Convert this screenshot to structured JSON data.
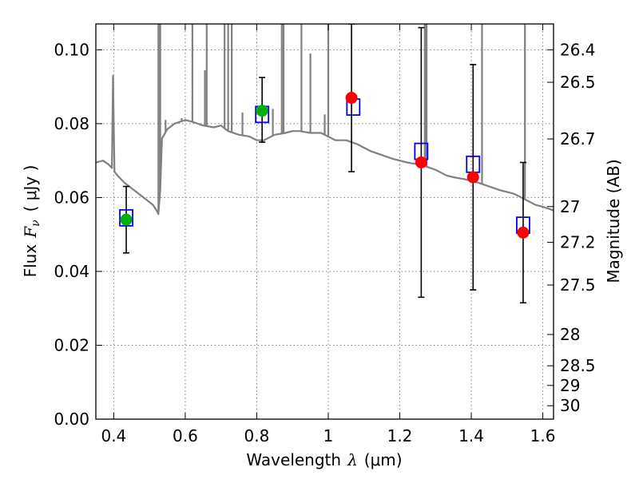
{
  "chart_data": {
    "type": "scatter",
    "xlabel_prefix": "Wavelength",
    "xlabel_math": "λ",
    "xlabel_unit": "(μm)",
    "ylabel_prefix": "Flux",
    "ylabel_math": "F",
    "ylabel_sub": "ν",
    "ylabel_unit": "( μJy )",
    "y2label": "Magnitude (AB)",
    "xlim": [
      0.35,
      1.63
    ],
    "ylim": [
      0.0,
      0.107
    ],
    "grid": true,
    "x_ticks": [
      0.4,
      0.6,
      0.8,
      1.0,
      1.2,
      1.4,
      1.6
    ],
    "x_tick_labels": [
      "0.4",
      "0.6",
      "0.8",
      "1",
      "1.2",
      "1.4",
      "1.6"
    ],
    "y_ticks": [
      0.0,
      0.02,
      0.04,
      0.06,
      0.08,
      0.1
    ],
    "y_tick_labels": [
      "0.00",
      "0.02",
      "0.04",
      "0.06",
      "0.08",
      "0.10"
    ],
    "mag_ticks": [
      26.4,
      26.5,
      26.7,
      27,
      27.2,
      27.5,
      28,
      28.5,
      29,
      30
    ],
    "mag_tick_labels": [
      "26.4",
      "26.5",
      "26.7",
      "27",
      "27.2",
      "27.5",
      "28",
      "28.5",
      "29",
      "30"
    ],
    "colors": {
      "model": "#808080",
      "model_photometry": "#0000ff",
      "detection": "#00b000",
      "observed": "#ff0000",
      "errorbar": "#000000"
    },
    "series": [
      {
        "kind": "line",
        "x": [
          0.35,
          0.37,
          0.385,
          0.395,
          0.398,
          0.402,
          0.41,
          0.43,
          0.45,
          0.47,
          0.49,
          0.51,
          0.52,
          0.525,
          0.53,
          0.535,
          0.55,
          0.57,
          0.6,
          0.62,
          0.65,
          0.68,
          0.7,
          0.72,
          0.75,
          0.78,
          0.8,
          0.82,
          0.85,
          0.88,
          0.9,
          0.92,
          0.95,
          0.98,
          1.0,
          1.02,
          1.05,
          1.08,
          1.1,
          1.12,
          1.15,
          1.18,
          1.2,
          1.22,
          1.25,
          1.27,
          1.3,
          1.33,
          1.35,
          1.38,
          1.4,
          1.42,
          1.45,
          1.48,
          1.5,
          1.52,
          1.55,
          1.58,
          1.6,
          1.63
        ],
        "y": [
          0.0695,
          0.07,
          0.069,
          0.068,
          0.093,
          0.067,
          0.066,
          0.064,
          0.0625,
          0.061,
          0.0595,
          0.058,
          0.0565,
          0.0555,
          0.062,
          0.076,
          0.0785,
          0.08,
          0.081,
          0.0805,
          0.0795,
          0.079,
          0.0795,
          0.078,
          0.077,
          0.0765,
          0.0755,
          0.0755,
          0.077,
          0.0775,
          0.078,
          0.078,
          0.0775,
          0.0775,
          0.0765,
          0.0755,
          0.0755,
          0.0745,
          0.0735,
          0.0725,
          0.0715,
          0.0705,
          0.07,
          0.0695,
          0.069,
          0.0685,
          0.0675,
          0.066,
          0.0655,
          0.065,
          0.0645,
          0.064,
          0.063,
          0.062,
          0.0615,
          0.061,
          0.0595,
          0.058,
          0.0575,
          0.0565
        ]
      },
      {
        "kind": "spikes",
        "x": [
          0.525,
          0.53,
          0.545,
          0.59,
          0.62,
          0.655,
          0.66,
          0.71,
          0.72,
          0.73,
          0.76,
          0.845,
          0.87,
          0.875,
          0.925,
          0.95,
          0.99,
          1.0,
          1.27,
          1.275,
          1.43,
          1.55
        ],
        "y": [
          0.107,
          0.107,
          0.081,
          0.0815,
          0.107,
          0.0945,
          0.107,
          0.107,
          0.107,
          0.107,
          0.083,
          0.084,
          0.107,
          0.107,
          0.107,
          0.099,
          0.0825,
          0.107,
          0.107,
          0.107,
          0.107,
          0.107
        ]
      },
      {
        "kind": "model_photometry",
        "x": [
          0.435,
          0.815,
          1.07,
          1.26,
          1.405,
          1.545
        ],
        "y": [
          0.0545,
          0.0825,
          0.0845,
          0.0725,
          0.069,
          0.0525
        ]
      },
      {
        "kind": "observed",
        "x": [
          0.435,
          0.815,
          1.065,
          1.26,
          1.405,
          1.545
        ],
        "y": [
          0.054,
          0.0835,
          0.087,
          0.0695,
          0.0655,
          0.0505
        ],
        "yerr_low": [
          0.045,
          0.075,
          0.067,
          0.033,
          0.035,
          0.0315
        ],
        "yerr_high": [
          0.063,
          0.0925,
          0.107,
          0.106,
          0.096,
          0.0695
        ],
        "color_keys": [
          "detection",
          "detection",
          "observed",
          "observed",
          "observed",
          "observed"
        ]
      }
    ]
  }
}
